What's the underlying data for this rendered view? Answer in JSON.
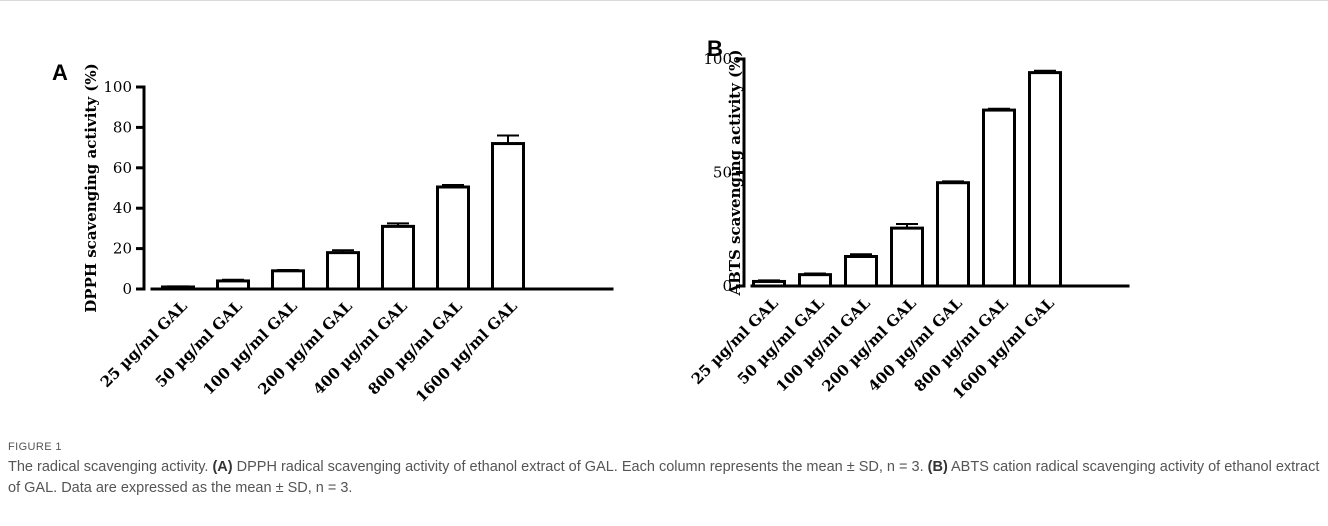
{
  "chart_data": [
    {
      "type": "bar",
      "panel": "A",
      "ylabel": "DPPH scavenging activity (%)",
      "xlabel": "",
      "ylim": [
        0,
        100
      ],
      "yticks": [
        0,
        20,
        40,
        60,
        80,
        100
      ],
      "categories": [
        "25 µg/ml GAL",
        "50 µg/ml GAL",
        "100 µg/ml GAL",
        "200 µg/ml GAL",
        "400 µg/ml GAL",
        "800 µg/ml GAL",
        "1600 µg/ml GAL"
      ],
      "values": [
        1,
        4,
        9,
        18,
        31,
        50.5,
        72
      ],
      "errors": [
        0.3,
        0.6,
        0.4,
        1.2,
        1.5,
        1.0,
        4.0
      ],
      "bar_fill": "#ffffff",
      "bar_stroke": "#000000",
      "grid": false
    },
    {
      "type": "bar",
      "panel": "B",
      "ylabel": "ABTS scavenging activity (%)",
      "xlabel": "",
      "ylim": [
        0,
        100
      ],
      "yticks": [
        0,
        50,
        100
      ],
      "categories": [
        "25 µg/ml GAL",
        "50 µg/ml GAL",
        "100 µg/ml GAL",
        "200 µg/ml GAL",
        "400 µg/ml GAL",
        "800 µg/ml GAL",
        "1600 µg/ml GAL"
      ],
      "values": [
        2,
        5,
        13,
        25.5,
        45.5,
        77.5,
        94
      ],
      "errors": [
        0.5,
        0.5,
        1.0,
        1.8,
        0.6,
        0.6,
        0.8
      ],
      "bar_fill": "#ffffff",
      "bar_stroke": "#000000",
      "grid": false
    }
  ],
  "caption": {
    "label": "FIGURE 1",
    "intro": "The radical scavenging activity.",
    "part_a_label": "(A)",
    "part_a_text": "DPPH radical scavenging activity of ethanol extract of GAL. Each column represents the mean ± SD, n = 3.",
    "part_b_label": "(B)",
    "part_b_text": "ABTS cation radical scavenging activity of ethanol extract of GAL. Data are expressed as the mean ± SD, n = 3."
  }
}
